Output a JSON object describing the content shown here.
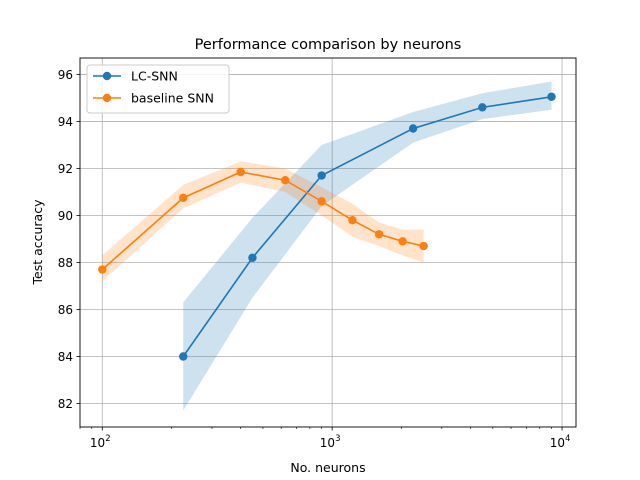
{
  "chart_data": {
    "type": "line",
    "title": "Performance comparison by neurons",
    "xlabel": "No. neurons",
    "ylabel": "Test accuracy",
    "xscale": "log",
    "xlim": [
      80,
      11500
    ],
    "ylim": [
      81.0,
      96.7
    ],
    "x_ticks": [
      {
        "value": 100,
        "base": "10",
        "exp": "2"
      },
      {
        "value": 1000,
        "base": "10",
        "exp": "3"
      },
      {
        "value": 10000,
        "base": "10",
        "exp": "4"
      }
    ],
    "y_ticks": [
      82,
      84,
      86,
      88,
      90,
      92,
      94,
      96
    ],
    "y_tick_labels": [
      "82",
      "84",
      "86",
      "88",
      "90",
      "92",
      "94",
      "96"
    ],
    "grid": true,
    "legend_position": "upper-left",
    "series": [
      {
        "name": "LC-SNN",
        "color": "#1f77b4",
        "x": [
          225,
          450,
          900,
          2250,
          4500,
          9000
        ],
        "y": [
          84.0,
          88.2,
          91.7,
          93.7,
          94.6,
          95.05
        ],
        "lower": [
          81.7,
          86.5,
          90.4,
          93.1,
          94.1,
          94.5
        ],
        "upper": [
          86.3,
          89.9,
          93.0,
          94.4,
          95.2,
          95.7
        ]
      },
      {
        "name": "baseline SNN",
        "color": "#ff7f0e",
        "x": [
          100,
          225,
          400,
          625,
          900,
          1225,
          1600,
          2025,
          2500
        ],
        "y": [
          87.7,
          90.75,
          91.85,
          91.5,
          90.6,
          89.8,
          89.2,
          88.9,
          88.7
        ],
        "lower": [
          87.2,
          90.3,
          91.4,
          91.0,
          90.0,
          89.1,
          88.7,
          88.3,
          88.0
        ],
        "upper": [
          88.3,
          91.3,
          92.3,
          92.0,
          91.2,
          90.5,
          89.7,
          89.4,
          89.4
        ]
      }
    ]
  }
}
